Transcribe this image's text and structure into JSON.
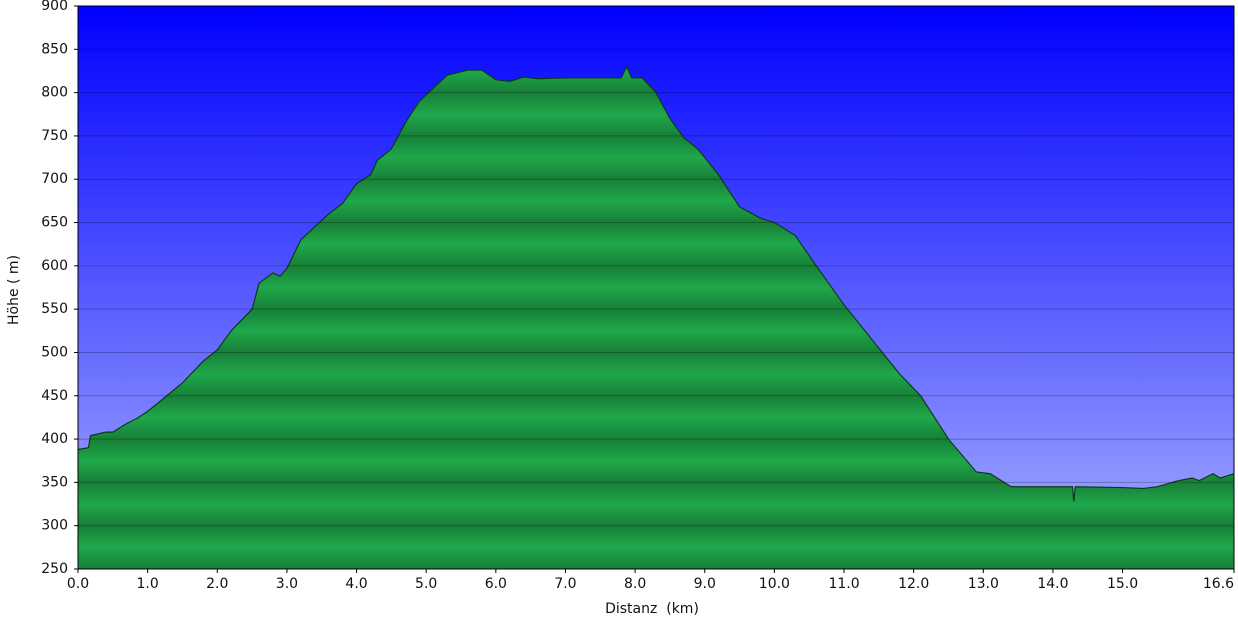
{
  "chart_data": {
    "type": "area",
    "xlabel": "Distanz  (km)",
    "ylabel": "Höhe ( m)",
    "color": "#1fa84a",
    "background": [
      "#0000ff",
      "#a8b0ff"
    ],
    "grid": true,
    "xlim": [
      0,
      16.6
    ],
    "ylim": [
      250,
      900
    ],
    "xticks": [
      {
        "value": 0,
        "label": "0.0"
      },
      {
        "value": 1,
        "label": "1.0"
      },
      {
        "value": 2,
        "label": "2.0"
      },
      {
        "value": 3,
        "label": "3.0"
      },
      {
        "value": 4,
        "label": "4.0"
      },
      {
        "value": 5,
        "label": "5.0"
      },
      {
        "value": 6,
        "label": "6.0"
      },
      {
        "value": 7,
        "label": "7.0"
      },
      {
        "value": 8,
        "label": "8.0"
      },
      {
        "value": 9,
        "label": "9.0"
      },
      {
        "value": 10,
        "label": "10.0"
      },
      {
        "value": 11,
        "label": "11.0"
      },
      {
        "value": 12,
        "label": "12.0"
      },
      {
        "value": 13,
        "label": "13.0"
      },
      {
        "value": 14,
        "label": "14.0"
      },
      {
        "value": 15,
        "label": "15.0"
      },
      {
        "value": 16.6,
        "label": "16.6"
      }
    ],
    "yticks": [
      250,
      300,
      350,
      400,
      450,
      500,
      550,
      600,
      650,
      700,
      750,
      800,
      850,
      900
    ],
    "x": [
      0,
      0.15,
      0.18,
      0.4,
      0.5,
      0.7,
      0.85,
      1.0,
      1.2,
      1.5,
      1.8,
      2.0,
      2.2,
      2.5,
      2.6,
      2.8,
      2.9,
      3.0,
      3.2,
      3.4,
      3.6,
      3.8,
      4.0,
      4.2,
      4.3,
      4.5,
      4.7,
      4.9,
      5.1,
      5.3,
      5.6,
      5.8,
      6.0,
      6.2,
      6.4,
      6.6,
      7.0,
      7.5,
      7.8,
      7.88,
      7.95,
      8.1,
      8.3,
      8.5,
      8.7,
      8.9,
      9.2,
      9.5,
      9.8,
      10.0,
      10.3,
      10.6,
      11.0,
      11.4,
      11.8,
      12.1,
      12.5,
      12.9,
      13.1,
      13.4,
      14.0,
      14.28,
      14.3,
      14.32,
      15.0,
      15.3,
      15.5,
      15.8,
      16.0,
      16.1,
      16.3,
      16.4,
      16.6
    ],
    "values": [
      388,
      390,
      404,
      408,
      408,
      418,
      424,
      432,
      445,
      465,
      490,
      503,
      525,
      550,
      580,
      592,
      588,
      597,
      630,
      645,
      660,
      672,
      695,
      705,
      722,
      735,
      765,
      790,
      805,
      820,
      826,
      826,
      815,
      813,
      818,
      816,
      817,
      817,
      817,
      830,
      817,
      817,
      800,
      770,
      748,
      735,
      705,
      668,
      655,
      650,
      635,
      600,
      555,
      515,
      475,
      450,
      400,
      362,
      360,
      345,
      345,
      345,
      328,
      345,
      344,
      343,
      345,
      352,
      355,
      352,
      360,
      355,
      360
    ]
  }
}
